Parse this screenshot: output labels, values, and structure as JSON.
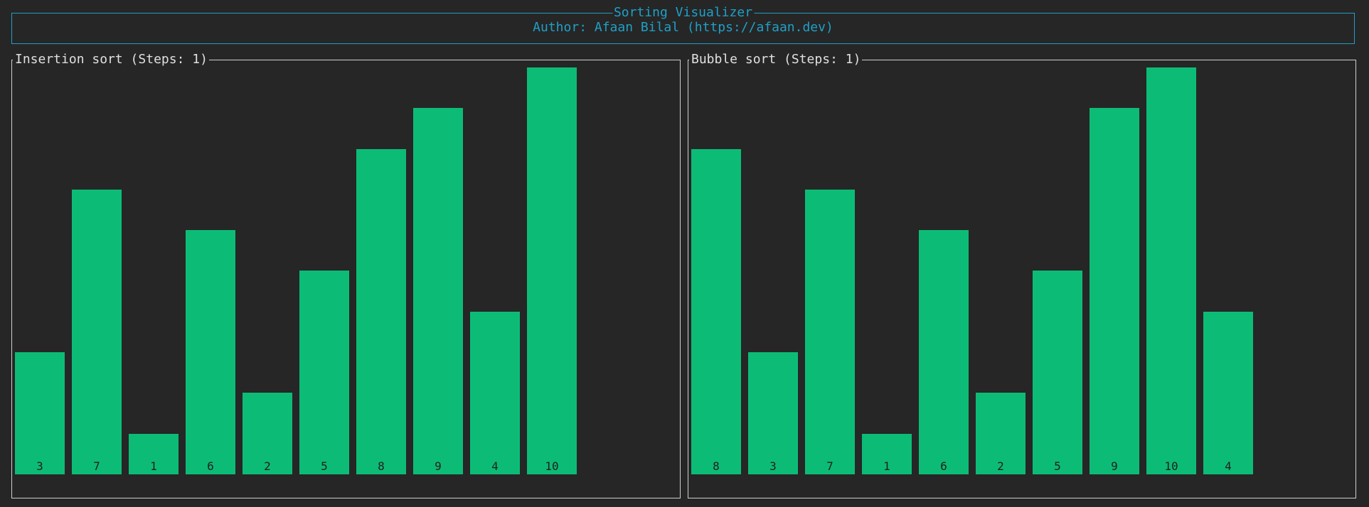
{
  "header": {
    "title": "Sorting Visualizer",
    "author": "Author: Afaan Bilal (https://afaan.dev)"
  },
  "panels": [
    {
      "title": "Insertion sort (Steps: 1)",
      "values": [
        3,
        7,
        1,
        6,
        2,
        5,
        8,
        9,
        4,
        10
      ]
    },
    {
      "title": "Bubble sort (Steps: 1)",
      "values": [
        8,
        3,
        7,
        1,
        6,
        2,
        5,
        9,
        10,
        4
      ]
    }
  ],
  "chart_data": [
    {
      "type": "bar",
      "title": "Insertion sort (Steps: 1)",
      "categories": [
        "3",
        "7",
        "1",
        "6",
        "2",
        "5",
        "8",
        "9",
        "4",
        "10"
      ],
      "values": [
        3,
        7,
        1,
        6,
        2,
        5,
        8,
        9,
        4,
        10
      ],
      "ylim": [
        0,
        10
      ]
    },
    {
      "type": "bar",
      "title": "Bubble sort (Steps: 1)",
      "categories": [
        "8",
        "3",
        "7",
        "1",
        "6",
        "2",
        "5",
        "9",
        "10",
        "4"
      ],
      "values": [
        8,
        3,
        7,
        1,
        6,
        2,
        5,
        9,
        10,
        4
      ],
      "ylim": [
        0,
        10
      ]
    }
  ],
  "colors": {
    "background": "#262626",
    "accent": "#1fa0c8",
    "bar": "#0cbc76",
    "border": "#cfcfcf"
  }
}
